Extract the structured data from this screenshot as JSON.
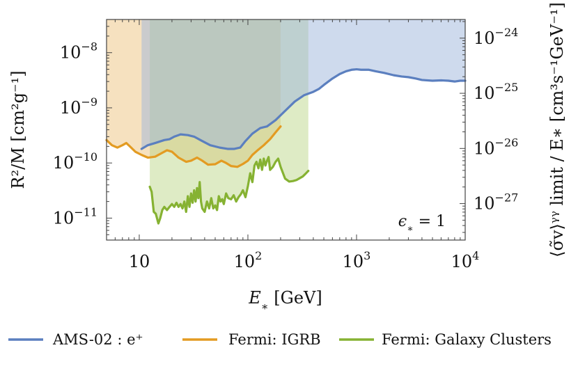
{
  "chart_data": {
    "type": "line",
    "x_scale": "log",
    "y_scale": "log",
    "xlim": [
      5,
      10000
    ],
    "ylim_left": [
      4e-12,
      4e-08
    ],
    "ylim_right": [
      2.18e-28,
      2.18e-24
    ],
    "xlabel_main": "E",
    "xlabel_sub": "∗",
    "xlabel_unit": " [GeV]",
    "ylabel_left": "R²/M [cm²g⁻¹]",
    "ylabel_right": "⟨σ̃v⟩ᵞᵞ limit / E∗ [cm³s⁻¹GeV⁻¹]",
    "annotation": {
      "main": "ϵ",
      "sub": "∗",
      "rest": " = 1"
    },
    "x_ticks": [
      {
        "value": 10,
        "base": "10",
        "exp": ""
      },
      {
        "value": 100,
        "base": "10",
        "exp": "2"
      },
      {
        "value": 1000,
        "base": "10",
        "exp": "3"
      },
      {
        "value": 10000,
        "base": "10",
        "exp": "4"
      }
    ],
    "y_ticks_left": [
      {
        "value": 1e-11,
        "base": "10",
        "exp": "−11"
      },
      {
        "value": 1e-10,
        "base": "10",
        "exp": "−10"
      },
      {
        "value": 1e-09,
        "base": "10",
        "exp": "−9"
      },
      {
        "value": 1e-08,
        "base": "10",
        "exp": "−8"
      }
    ],
    "y_ticks_right": [
      {
        "value": 1e-27,
        "base": "10",
        "exp": "−27"
      },
      {
        "value": 1e-26,
        "base": "10",
        "exp": "−26"
      },
      {
        "value": 1e-25,
        "base": "10",
        "exp": "−25"
      },
      {
        "value": 1e-24,
        "base": "10",
        "exp": "−24"
      }
    ],
    "legend": [
      {
        "label": "AMS-02 :  e⁺",
        "color": "#5b7fbf"
      },
      {
        "label": "Fermi: IGRB",
        "color": "#e39b22"
      },
      {
        "label": "Fermi: Galaxy Clusters",
        "color": "#86b232"
      }
    ],
    "series": [
      {
        "name": "AMS-02 :  e⁺",
        "color": "#5b7fbf",
        "fill": "#9db5dc",
        "fill_opacity": 0.5,
        "x": [
          10.5,
          12,
          14,
          17,
          19,
          21,
          24,
          28,
          32,
          38,
          45,
          55,
          65,
          75,
          85,
          95,
          110,
          130,
          150,
          180,
          220,
          270,
          330,
          400,
          450,
          500,
          600,
          700,
          800,
          900,
          1000,
          1100,
          1300,
          1500,
          1800,
          2200,
          2600,
          3000,
          3500,
          4000,
          5000,
          6000,
          7000,
          8000,
          9000,
          10000
        ],
        "y": [
          1.8e-10,
          2.1e-10,
          2.3e-10,
          2.6e-10,
          2.7e-10,
          3e-10,
          3.3e-10,
          3.2e-10,
          3e-10,
          2.5e-10,
          2.1e-10,
          1.9e-10,
          1.8e-10,
          1.8e-10,
          1.9e-10,
          2.5e-10,
          3.4e-10,
          4.3e-10,
          4.6e-10,
          6e-10,
          8.8e-10,
          1.3e-09,
          1.7e-09,
          1.95e-09,
          2.2e-09,
          2.6e-09,
          3.4e-09,
          4.1e-09,
          4.6e-09,
          4.9e-09,
          5e-09,
          4.9e-09,
          4.9e-09,
          4.6e-09,
          4.3e-09,
          3.9e-09,
          3.7e-09,
          3.6e-09,
          3.4e-09,
          3.2e-09,
          3.1e-09,
          3.15e-09,
          3.1e-09,
          3e-09,
          3.1e-09,
          3.1e-09
        ]
      },
      {
        "name": "Fermi: IGRB",
        "color": "#e39b22",
        "fill": "#efc88a",
        "fill_opacity": 0.55,
        "x": [
          5,
          5.6,
          6.3,
          7,
          7.6,
          8.2,
          9.2,
          10.5,
          12,
          14,
          16,
          18,
          20,
          23,
          27,
          30,
          34,
          38,
          43,
          50,
          57,
          63,
          70,
          80,
          90,
          100,
          110,
          125,
          140,
          160,
          180,
          200
        ],
        "y": [
          2.6e-10,
          2.1e-10,
          1.9e-10,
          2.1e-10,
          2.3e-10,
          2e-10,
          1.6e-10,
          1.4e-10,
          1.25e-10,
          1.3e-10,
          1.5e-10,
          1.7e-10,
          1.6e-10,
          1.25e-10,
          1.05e-10,
          1.1e-10,
          1.25e-10,
          1.1e-10,
          9.3e-11,
          9.5e-11,
          1.1e-10,
          1e-10,
          8.8e-11,
          8.5e-11,
          9.6e-11,
          1.1e-10,
          1.4e-10,
          1.75e-10,
          2.1e-10,
          2.7e-10,
          3.6e-10,
          4.6e-10
        ]
      },
      {
        "name": "Fermi: Galaxy Clusters",
        "color": "#86b232",
        "fill": "#b5d37e",
        "fill_opacity": 0.45,
        "x": [
          12.5,
          13,
          13.6,
          14.2,
          15,
          15.6,
          16.3,
          17,
          18,
          19,
          20,
          21,
          22,
          23,
          24,
          25,
          26,
          27,
          28,
          29,
          30,
          31,
          32,
          33,
          34,
          35,
          36,
          37,
          38,
          40,
          42,
          44,
          46,
          48,
          50,
          52,
          54,
          56,
          58,
          60,
          63,
          66,
          70,
          74,
          78,
          82,
          86,
          90,
          95,
          100,
          105,
          110,
          115,
          120,
          125,
          130,
          135,
          140,
          145,
          150,
          155,
          160,
          170,
          180,
          190,
          200,
          220,
          240,
          260,
          280,
          300,
          320,
          340,
          360
        ],
        "y": [
          3.7e-11,
          3e-11,
          1.3e-11,
          1.2e-11,
          8e-12,
          1e-11,
          1.4e-11,
          1.6e-11,
          1.4e-11,
          1.6e-11,
          1.8e-11,
          1.6e-11,
          1.9e-11,
          1.6e-11,
          1.8e-11,
          1.5e-11,
          2e-11,
          1.3e-11,
          2.5e-11,
          1.6e-11,
          2.8e-11,
          1.9e-11,
          3.2e-11,
          2e-11,
          3.5e-11,
          2.3e-11,
          4.5e-11,
          2e-11,
          1.5e-11,
          1.3e-11,
          2e-11,
          1.5e-11,
          2.3e-11,
          1.5e-11,
          1.7e-11,
          1.4e-11,
          2.5e-11,
          2e-11,
          2.2e-11,
          1.8e-11,
          2.8e-11,
          2.3e-11,
          2.2e-11,
          2.6e-11,
          2e-11,
          2.4e-11,
          2.7e-11,
          3.2e-11,
          2.4e-11,
          3.8e-11,
          6.5e-11,
          4.5e-11,
          9e-11,
          1.05e-10,
          8e-11,
          1.15e-10,
          7.5e-11,
          1.2e-10,
          9e-11,
          1.1e-10,
          1.28e-10,
          7.5e-11,
          8.5e-11,
          1.05e-10,
          1.2e-10,
          8.5e-11,
          5.2e-11,
          4.6e-11,
          4.7e-11,
          4.9e-11,
          5.3e-11,
          5.7e-11,
          6.4e-11,
          7.2e-11
        ]
      }
    ]
  }
}
